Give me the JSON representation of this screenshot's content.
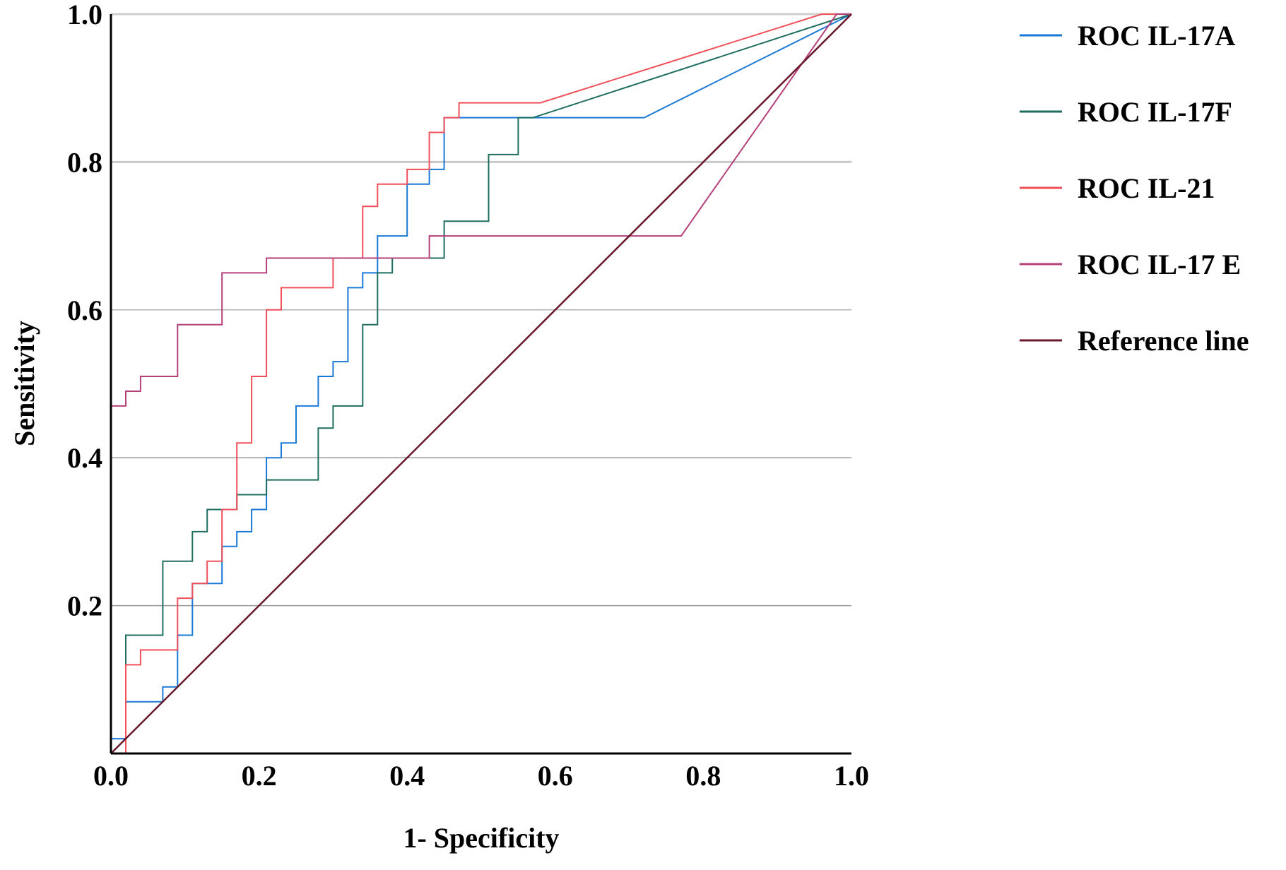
{
  "chart_data": {
    "type": "line",
    "title": "",
    "xlabel": "1- Specificity",
    "ylabel": "Sensitivity",
    "xlim": [
      0,
      1
    ],
    "ylim": [
      0,
      1
    ],
    "grid": "horizontal",
    "legend_position": "right",
    "x_ticks": [
      "0.0",
      "0.2",
      "0.4",
      "0.6",
      "0.8",
      "1.0"
    ],
    "y_ticks": [
      "0.2",
      "0.4",
      "0.6",
      "0.8",
      "1.0"
    ],
    "series": [
      {
        "name": "ROC IL-17A",
        "color": "#1a78d6",
        "points": [
          [
            0,
            0
          ],
          [
            0,
            0.02
          ],
          [
            0.02,
            0.02
          ],
          [
            0.02,
            0.07
          ],
          [
            0.07,
            0.07
          ],
          [
            0.07,
            0.09
          ],
          [
            0.09,
            0.09
          ],
          [
            0.09,
            0.16
          ],
          [
            0.11,
            0.16
          ],
          [
            0.11,
            0.23
          ],
          [
            0.15,
            0.23
          ],
          [
            0.15,
            0.28
          ],
          [
            0.17,
            0.28
          ],
          [
            0.17,
            0.3
          ],
          [
            0.19,
            0.3
          ],
          [
            0.19,
            0.33
          ],
          [
            0.21,
            0.33
          ],
          [
            0.21,
            0.4
          ],
          [
            0.23,
            0.4
          ],
          [
            0.23,
            0.42
          ],
          [
            0.25,
            0.42
          ],
          [
            0.25,
            0.47
          ],
          [
            0.28,
            0.47
          ],
          [
            0.28,
            0.51
          ],
          [
            0.3,
            0.51
          ],
          [
            0.3,
            0.53
          ],
          [
            0.32,
            0.53
          ],
          [
            0.32,
            0.63
          ],
          [
            0.34,
            0.63
          ],
          [
            0.34,
            0.65
          ],
          [
            0.36,
            0.65
          ],
          [
            0.36,
            0.7
          ],
          [
            0.4,
            0.7
          ],
          [
            0.4,
            0.77
          ],
          [
            0.43,
            0.77
          ],
          [
            0.43,
            0.79
          ],
          [
            0.45,
            0.79
          ],
          [
            0.45,
            0.86
          ],
          [
            0.72,
            0.86
          ],
          [
            1,
            1
          ]
        ]
      },
      {
        "name": "ROC IL-17F",
        "color": "#1f6e60",
        "points": [
          [
            0,
            0
          ],
          [
            0.02,
            0
          ],
          [
            0.02,
            0.16
          ],
          [
            0.07,
            0.16
          ],
          [
            0.07,
            0.26
          ],
          [
            0.11,
            0.26
          ],
          [
            0.11,
            0.3
          ],
          [
            0.13,
            0.3
          ],
          [
            0.13,
            0.33
          ],
          [
            0.17,
            0.33
          ],
          [
            0.17,
            0.35
          ],
          [
            0.21,
            0.35
          ],
          [
            0.21,
            0.37
          ],
          [
            0.28,
            0.37
          ],
          [
            0.28,
            0.44
          ],
          [
            0.3,
            0.44
          ],
          [
            0.3,
            0.47
          ],
          [
            0.34,
            0.47
          ],
          [
            0.34,
            0.58
          ],
          [
            0.36,
            0.58
          ],
          [
            0.36,
            0.65
          ],
          [
            0.38,
            0.65
          ],
          [
            0.38,
            0.67
          ],
          [
            0.45,
            0.67
          ],
          [
            0.45,
            0.72
          ],
          [
            0.51,
            0.72
          ],
          [
            0.51,
            0.81
          ],
          [
            0.55,
            0.81
          ],
          [
            0.55,
            0.86
          ],
          [
            0.57,
            0.86
          ],
          [
            1,
            1
          ]
        ]
      },
      {
        "name": "ROC IL-21",
        "color": "#f0505a",
        "points": [
          [
            0,
            0
          ],
          [
            0.02,
            0
          ],
          [
            0.02,
            0.12
          ],
          [
            0.04,
            0.12
          ],
          [
            0.04,
            0.14
          ],
          [
            0.09,
            0.14
          ],
          [
            0.09,
            0.21
          ],
          [
            0.11,
            0.21
          ],
          [
            0.11,
            0.23
          ],
          [
            0.13,
            0.23
          ],
          [
            0.13,
            0.26
          ],
          [
            0.15,
            0.26
          ],
          [
            0.15,
            0.33
          ],
          [
            0.17,
            0.33
          ],
          [
            0.17,
            0.42
          ],
          [
            0.19,
            0.42
          ],
          [
            0.19,
            0.51
          ],
          [
            0.21,
            0.51
          ],
          [
            0.21,
            0.6
          ],
          [
            0.23,
            0.6
          ],
          [
            0.23,
            0.63
          ],
          [
            0.3,
            0.63
          ],
          [
            0.3,
            0.67
          ],
          [
            0.34,
            0.67
          ],
          [
            0.34,
            0.74
          ],
          [
            0.36,
            0.74
          ],
          [
            0.36,
            0.77
          ],
          [
            0.4,
            0.77
          ],
          [
            0.4,
            0.79
          ],
          [
            0.43,
            0.79
          ],
          [
            0.43,
            0.84
          ],
          [
            0.45,
            0.84
          ],
          [
            0.45,
            0.86
          ],
          [
            0.47,
            0.86
          ],
          [
            0.47,
            0.88
          ],
          [
            0.58,
            0.88
          ],
          [
            0.96,
            1
          ],
          [
            1,
            1
          ]
        ]
      },
      {
        "name": "ROC IL-17 E",
        "color": "#b5417a",
        "points": [
          [
            0,
            0
          ],
          [
            0,
            0.47
          ],
          [
            0.02,
            0.47
          ],
          [
            0.02,
            0.49
          ],
          [
            0.04,
            0.49
          ],
          [
            0.04,
            0.51
          ],
          [
            0.09,
            0.51
          ],
          [
            0.09,
            0.58
          ],
          [
            0.15,
            0.58
          ],
          [
            0.15,
            0.65
          ],
          [
            0.21,
            0.65
          ],
          [
            0.21,
            0.67
          ],
          [
            0.43,
            0.67
          ],
          [
            0.43,
            0.7
          ],
          [
            0.77,
            0.7
          ],
          [
            0.98,
            1
          ],
          [
            1,
            1
          ]
        ]
      },
      {
        "name": "Reference line",
        "color": "#6b1a2c",
        "points": [
          [
            0,
            0
          ],
          [
            1,
            1
          ]
        ]
      }
    ]
  }
}
